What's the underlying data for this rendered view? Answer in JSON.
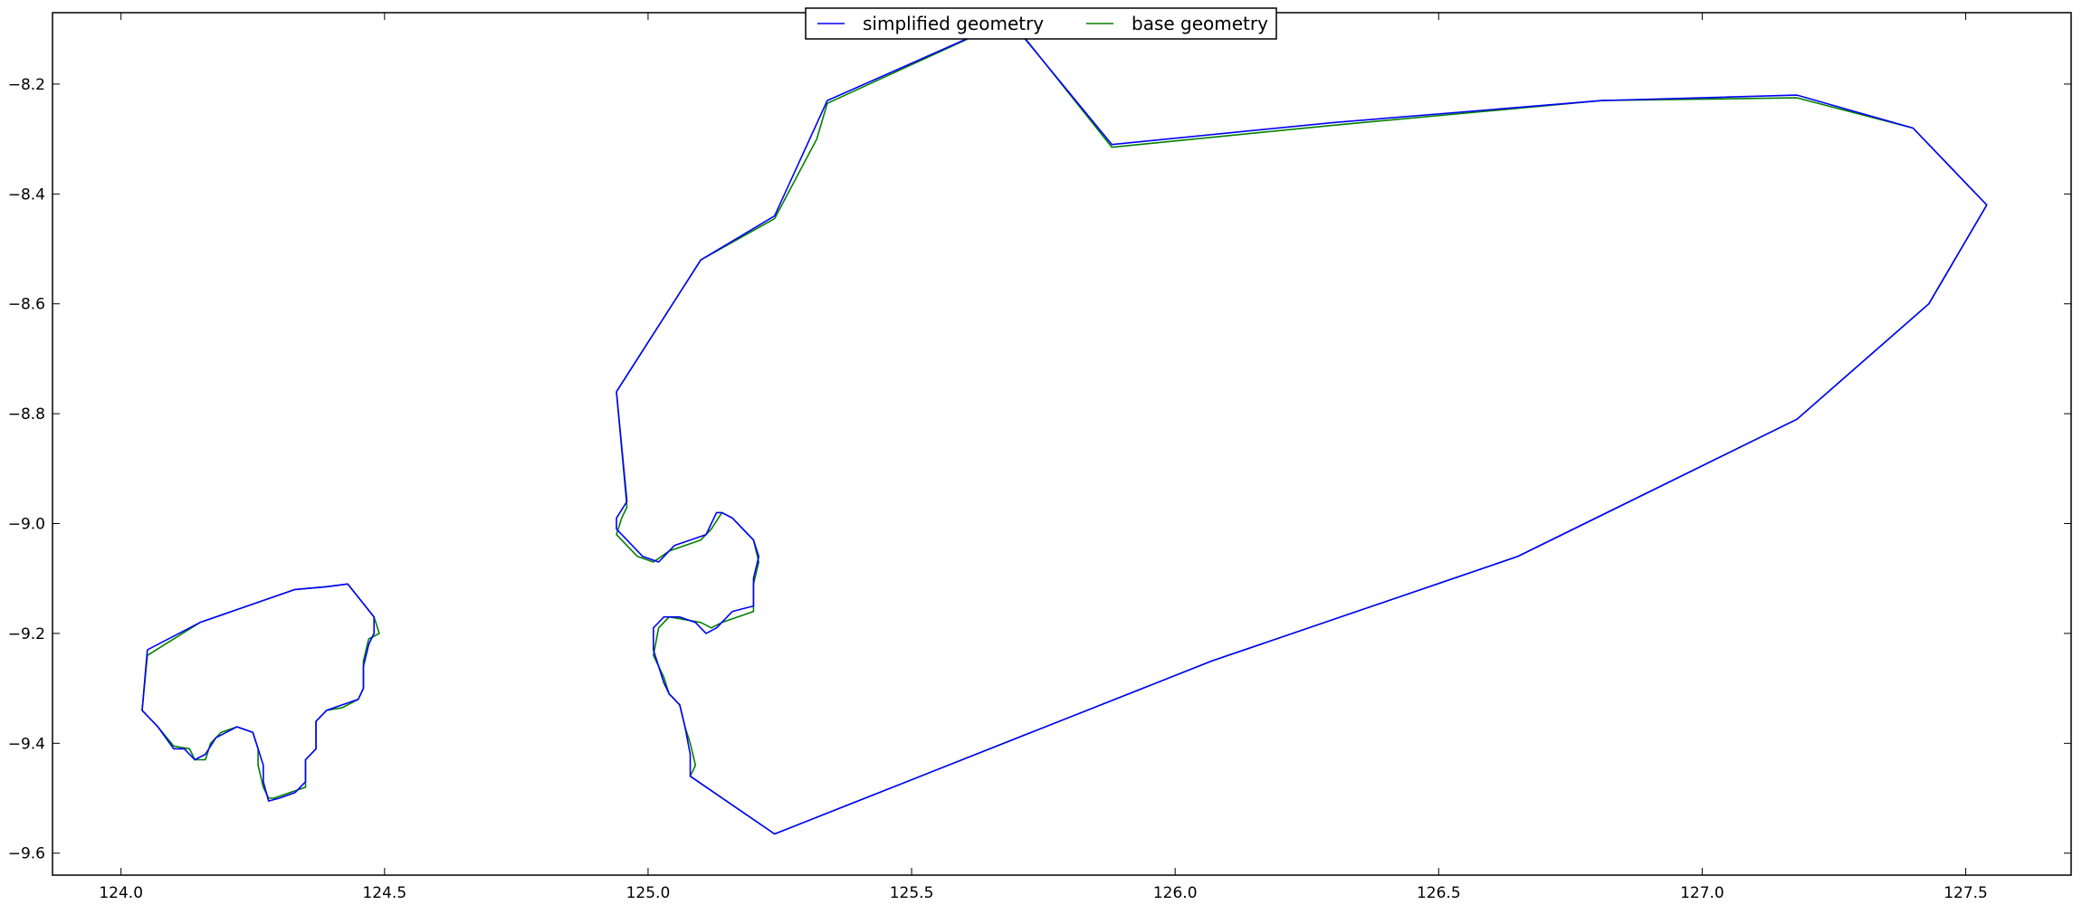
{
  "chart_data": {
    "type": "line",
    "title": "",
    "xlabel": "",
    "ylabel": "",
    "xlim": [
      123.87,
      127.7
    ],
    "ylim": [
      -9.64,
      -8.07
    ],
    "xticks": [
      124.0,
      124.5,
      125.0,
      125.5,
      126.0,
      126.5,
      127.0,
      127.5
    ],
    "xtick_labels": [
      "124.0",
      "124.5",
      "125.0",
      "125.5",
      "126.0",
      "126.5",
      "127.0",
      "127.5"
    ],
    "yticks": [
      -8.2,
      -8.4,
      -8.6,
      -8.8,
      -9.0,
      -9.2,
      -9.4,
      -9.6
    ],
    "ytick_labels": [
      "−8.2",
      "−8.4",
      "−8.6",
      "−8.8",
      "−9.0",
      "−9.2",
      "−9.4",
      "−9.6"
    ],
    "grid": false,
    "legend": {
      "placement": "top-center",
      "ncol": 2
    },
    "series": [
      {
        "name": "simplified geometry",
        "color": "#0000ff",
        "polygons": [
          [
            [
              124.05,
              -9.23
            ],
            [
              124.15,
              -9.18
            ],
            [
              124.33,
              -9.12
            ],
            [
              124.39,
              -9.115
            ],
            [
              124.43,
              -9.11
            ],
            [
              124.48,
              -9.17
            ],
            [
              124.48,
              -9.2
            ],
            [
              124.47,
              -9.22
            ],
            [
              124.46,
              -9.26
            ],
            [
              124.46,
              -9.3
            ],
            [
              124.45,
              -9.32
            ],
            [
              124.42,
              -9.33
            ],
            [
              124.39,
              -9.34
            ],
            [
              124.37,
              -9.36
            ],
            [
              124.37,
              -9.41
            ],
            [
              124.35,
              -9.43
            ],
            [
              124.35,
              -9.47
            ],
            [
              124.33,
              -9.49
            ],
            [
              124.3,
              -9.5
            ],
            [
              124.28,
              -9.505
            ],
            [
              124.27,
              -9.47
            ],
            [
              124.27,
              -9.44
            ],
            [
              124.26,
              -9.41
            ],
            [
              124.25,
              -9.38
            ],
            [
              124.22,
              -9.37
            ],
            [
              124.2,
              -9.38
            ],
            [
              124.18,
              -9.39
            ],
            [
              124.16,
              -9.42
            ],
            [
              124.14,
              -9.43
            ],
            [
              124.12,
              -9.41
            ],
            [
              124.1,
              -9.41
            ],
            [
              124.07,
              -9.37
            ],
            [
              124.05,
              -9.35
            ],
            [
              124.04,
              -9.34
            ],
            [
              124.05,
              -9.23
            ]
          ],
          [
            [
              124.94,
              -8.76
            ],
            [
              125.1,
              -8.52
            ],
            [
              125.24,
              -8.44
            ],
            [
              125.34,
              -8.23
            ],
            [
              125.67,
              -8.09
            ],
            [
              125.7,
              -8.1
            ],
            [
              125.88,
              -8.31
            ],
            [
              126.3,
              -8.27
            ],
            [
              126.81,
              -8.23
            ],
            [
              127.18,
              -8.22
            ],
            [
              127.4,
              -8.28
            ],
            [
              127.54,
              -8.42
            ],
            [
              127.43,
              -8.6
            ],
            [
              127.18,
              -8.81
            ],
            [
              126.65,
              -9.06
            ],
            [
              126.07,
              -9.25
            ],
            [
              125.24,
              -9.565
            ],
            [
              125.08,
              -9.46
            ],
            [
              125.08,
              -9.42
            ],
            [
              125.07,
              -9.37
            ],
            [
              125.06,
              -9.33
            ],
            [
              125.04,
              -9.31
            ],
            [
              125.03,
              -9.29
            ],
            [
              125.02,
              -9.26
            ],
            [
              125.01,
              -9.23
            ],
            [
              125.01,
              -9.19
            ],
            [
              125.03,
              -9.17
            ],
            [
              125.06,
              -9.17
            ],
            [
              125.09,
              -9.18
            ],
            [
              125.11,
              -9.2
            ],
            [
              125.13,
              -9.19
            ],
            [
              125.16,
              -9.16
            ],
            [
              125.2,
              -9.15
            ],
            [
              125.2,
              -9.1
            ],
            [
              125.21,
              -9.06
            ],
            [
              125.2,
              -9.03
            ],
            [
              125.18,
              -9.01
            ],
            [
              125.16,
              -8.99
            ],
            [
              125.14,
              -8.98
            ],
            [
              125.13,
              -8.98
            ],
            [
              125.12,
              -9.0
            ],
            [
              125.11,
              -9.02
            ],
            [
              125.08,
              -9.03
            ],
            [
              125.05,
              -9.04
            ],
            [
              125.02,
              -9.07
            ],
            [
              124.99,
              -9.06
            ],
            [
              124.97,
              -9.04
            ],
            [
              124.94,
              -9.01
            ],
            [
              124.94,
              -8.99
            ],
            [
              124.96,
              -8.96
            ],
            [
              124.94,
              -8.76
            ]
          ]
        ]
      },
      {
        "name": "base geometry",
        "color": "#008000",
        "polygons": [
          [
            [
              124.05,
              -9.24
            ],
            [
              124.15,
              -9.18
            ],
            [
              124.33,
              -9.12
            ],
            [
              124.39,
              -9.115
            ],
            [
              124.43,
              -9.11
            ],
            [
              124.48,
              -9.17
            ],
            [
              124.49,
              -9.2
            ],
            [
              124.47,
              -9.21
            ],
            [
              124.46,
              -9.25
            ],
            [
              124.46,
              -9.3
            ],
            [
              124.45,
              -9.32
            ],
            [
              124.42,
              -9.335
            ],
            [
              124.39,
              -9.34
            ],
            [
              124.37,
              -9.36
            ],
            [
              124.37,
              -9.41
            ],
            [
              124.35,
              -9.43
            ],
            [
              124.35,
              -9.48
            ],
            [
              124.32,
              -9.49
            ],
            [
              124.29,
              -9.5
            ],
            [
              124.28,
              -9.5
            ],
            [
              124.27,
              -9.48
            ],
            [
              124.26,
              -9.44
            ],
            [
              124.26,
              -9.41
            ],
            [
              124.25,
              -9.38
            ],
            [
              124.22,
              -9.37
            ],
            [
              124.19,
              -9.38
            ],
            [
              124.17,
              -9.4
            ],
            [
              124.16,
              -9.43
            ],
            [
              124.14,
              -9.43
            ],
            [
              124.13,
              -9.41
            ],
            [
              124.1,
              -9.405
            ],
            [
              124.07,
              -9.37
            ],
            [
              124.05,
              -9.35
            ],
            [
              124.04,
              -9.34
            ],
            [
              124.05,
              -9.24
            ]
          ],
          [
            [
              124.94,
              -8.76
            ],
            [
              125.1,
              -8.52
            ],
            [
              125.24,
              -8.445
            ],
            [
              125.32,
              -8.3
            ],
            [
              125.34,
              -8.235
            ],
            [
              125.67,
              -8.09
            ],
            [
              125.71,
              -8.11
            ],
            [
              125.88,
              -8.315
            ],
            [
              126.3,
              -8.275
            ],
            [
              126.81,
              -8.23
            ],
            [
              127.18,
              -8.225
            ],
            [
              127.4,
              -8.28
            ],
            [
              127.54,
              -8.42
            ],
            [
              127.43,
              -8.6
            ],
            [
              127.18,
              -8.81
            ],
            [
              126.65,
              -9.06
            ],
            [
              126.07,
              -9.25
            ],
            [
              125.24,
              -9.565
            ],
            [
              125.08,
              -9.46
            ],
            [
              125.09,
              -9.44
            ],
            [
              125.08,
              -9.4
            ],
            [
              125.07,
              -9.37
            ],
            [
              125.06,
              -9.33
            ],
            [
              125.04,
              -9.31
            ],
            [
              125.03,
              -9.28
            ],
            [
              125.02,
              -9.26
            ],
            [
              125.01,
              -9.24
            ],
            [
              125.02,
              -9.19
            ],
            [
              125.04,
              -9.17
            ],
            [
              125.07,
              -9.175
            ],
            [
              125.1,
              -9.18
            ],
            [
              125.12,
              -9.19
            ],
            [
              125.14,
              -9.18
            ],
            [
              125.17,
              -9.17
            ],
            [
              125.2,
              -9.16
            ],
            [
              125.2,
              -9.11
            ],
            [
              125.21,
              -9.07
            ],
            [
              125.2,
              -9.03
            ],
            [
              125.18,
              -9.01
            ],
            [
              125.16,
              -8.99
            ],
            [
              125.14,
              -8.98
            ],
            [
              125.12,
              -9.01
            ],
            [
              125.1,
              -9.03
            ],
            [
              125.07,
              -9.04
            ],
            [
              125.04,
              -9.05
            ],
            [
              125.01,
              -9.07
            ],
            [
              124.98,
              -9.06
            ],
            [
              124.96,
              -9.04
            ],
            [
              124.94,
              -9.02
            ],
            [
              124.95,
              -8.99
            ],
            [
              124.96,
              -8.97
            ],
            [
              124.94,
              -8.76
            ]
          ]
        ]
      }
    ]
  }
}
